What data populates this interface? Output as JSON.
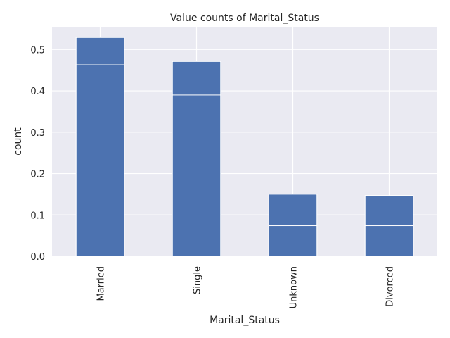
{
  "chart_data": {
    "type": "bar",
    "title": "Value counts of Marital_Status",
    "xlabel": "Marital_Status",
    "ylabel": "count",
    "categories": [
      "Married",
      "Single",
      "Unknown",
      "Divorced"
    ],
    "series": [
      {
        "values": [
          0.529,
          0.471,
          0.15,
          0.147
        ]
      },
      {
        "values": [
          0.463,
          0.39,
          0.074,
          0.074
        ]
      }
    ],
    "ylim": [
      0,
      0.555
    ],
    "yticks": [
      0.0,
      0.1,
      0.2,
      0.3,
      0.4,
      0.5
    ],
    "ytick_labels": [
      "0.0",
      "0.1",
      "0.2",
      "0.3",
      "0.4",
      "0.5"
    ],
    "grid": true,
    "colors": {
      "bar": "#4c72b0",
      "bar_edge": "#ffffff",
      "plot_background": "#eaeaf2",
      "grid": "#ffffff",
      "text": "#262626"
    }
  }
}
